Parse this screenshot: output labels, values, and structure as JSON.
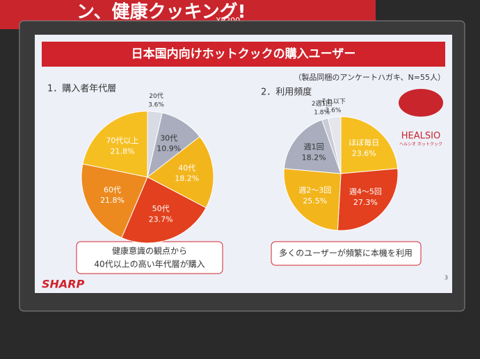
{
  "background": {
    "banner": "ン、健康クッキング!",
    "model": "XP200"
  },
  "slide": {
    "title": "日本国内向けホットクックの購入ユーザー",
    "note": "（製品同梱のアンケートハガキ、N=55人）",
    "callouts": [
      [
        "健康意識の観点から",
        "40代以上の高い年代層が購入"
      ],
      [
        "多くのユーザーが頻繁に本機を利用"
      ]
    ],
    "logo": "SHARP",
    "brand": "HEALSIO",
    "brand_sub": "ヘルシオ ホットクック",
    "page_number": "3"
  },
  "chart_data": [
    {
      "type": "pie",
      "title": "1．購入者年代層",
      "categories": [
        "20代",
        "30代",
        "40代",
        "50代",
        "60代",
        "70代以上"
      ],
      "values": [
        3.6,
        10.9,
        18.2,
        23.7,
        21.8,
        21.8
      ],
      "value_labels": [
        "3.6%",
        "10.9%",
        "18.2%",
        "23.7%",
        "21.8%",
        "21.8%"
      ],
      "colors": [
        "#d9dbe4",
        "#a9adbd",
        "#f2b51c",
        "#e2401e",
        "#ec8a1f",
        "#f5bf22"
      ]
    },
    {
      "type": "pie",
      "title": "2．利用頻度",
      "categories": [
        "ほぼ毎日",
        "週4～5回",
        "週2～3回",
        "週1回",
        "2週1回",
        "それ以下"
      ],
      "values": [
        23.6,
        27.3,
        25.5,
        18.2,
        1.8,
        3.6
      ],
      "value_labels": [
        "23.6%",
        "27.3%",
        "25.5%",
        "18.2%",
        "1.8%",
        "3.6%"
      ],
      "colors": [
        "#f5bf22",
        "#e2401e",
        "#f2b51c",
        "#a9adbd",
        "#c9ccd6",
        "#e4e6ec"
      ]
    }
  ]
}
